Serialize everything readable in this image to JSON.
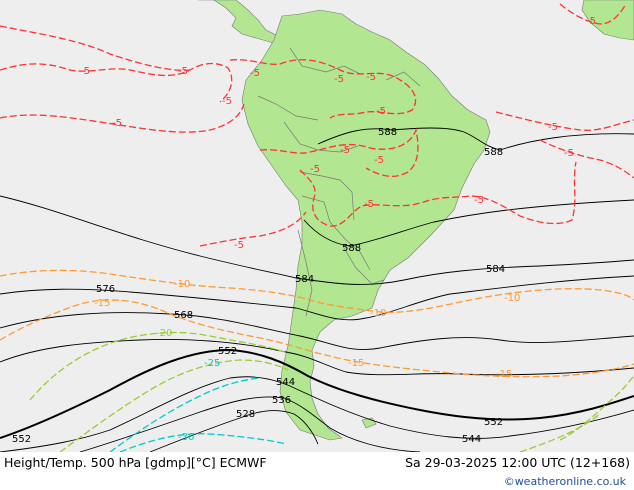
{
  "footer": {
    "title": "Height/Temp. 500 hPa [gdmp][°C] ECMWF",
    "datetime": "Sa 29-03-2025 12:00 UTC (12+168)",
    "credit": "©weatheronline.co.uk"
  },
  "colors": {
    "ocean": "#eeeeee",
    "land": "#b2e690",
    "height_contour": "#000000",
    "temp_minus5": "#ff3333",
    "temp_minus10_15": "#ff9933",
    "temp_minus20_25": "#99cc33",
    "temp_minus30": "#00cccc",
    "credit_text": "#1f4fa0"
  },
  "height_contour_labels": [
    {
      "value": "588",
      "position": "northern Brazil"
    },
    {
      "value": "588",
      "position": "Atlantic off NE Brazil"
    },
    {
      "value": "588",
      "position": "Paraguay"
    },
    {
      "value": "584",
      "position": "southern Brazil"
    },
    {
      "value": "584",
      "position": "South Atlantic"
    },
    {
      "value": "576",
      "position": "southeast Pacific"
    },
    {
      "value": "568",
      "position": "southeast Pacific"
    },
    {
      "value": "552",
      "position": "Chile coast"
    },
    {
      "value": "552",
      "position": "far southwest"
    },
    {
      "value": "552",
      "position": "South Atlantic"
    },
    {
      "value": "544",
      "position": "Patagonia"
    },
    {
      "value": "544",
      "position": "South Atlantic"
    },
    {
      "value": "536",
      "position": "southern Patagonia"
    },
    {
      "value": "528",
      "position": "southern Pacific"
    }
  ],
  "temperature_contour_labels": [
    {
      "value": "-5",
      "position": "Pacific"
    },
    {
      "value": "-5",
      "position": "Pacific"
    },
    {
      "value": "-5",
      "position": "Central America"
    },
    {
      "value": "-5",
      "position": "Pacific west of Peru"
    },
    {
      "value": "-5",
      "position": "Peru coast"
    },
    {
      "value": "-5",
      "position": "Colombia"
    },
    {
      "value": "-5",
      "position": "Venezuela"
    },
    {
      "value": "-5",
      "position": "Amazon"
    },
    {
      "value": "-5",
      "position": "Peru"
    },
    {
      "value": "-5",
      "position": "central Brazil"
    },
    {
      "value": "-5",
      "position": "Bolivia"
    },
    {
      "value": "-5",
      "position": "southern Brazil"
    },
    {
      "value": "-5",
      "position": "Pacific off Chile"
    },
    {
      "value": "-5",
      "position": "Atlantic"
    },
    {
      "value": "-5",
      "position": "Atlantic"
    },
    {
      "value": "-5",
      "position": "Atlantic east of Brazil"
    },
    {
      "value": "-5",
      "position": "Africa"
    },
    {
      "value": "-10",
      "position": "Pacific off Chile"
    },
    {
      "value": "-10",
      "position": "Uruguay"
    },
    {
      "value": "-10",
      "position": "South Atlantic"
    },
    {
      "value": "-15",
      "position": "Pacific"
    },
    {
      "value": "-15",
      "position": "Argentina coast"
    },
    {
      "value": "-15",
      "position": "South Atlantic"
    },
    {
      "value": "-20",
      "position": "Pacific"
    },
    {
      "value": "-25",
      "position": "Pacific"
    },
    {
      "value": "-30",
      "position": "southern Pacific"
    }
  ]
}
